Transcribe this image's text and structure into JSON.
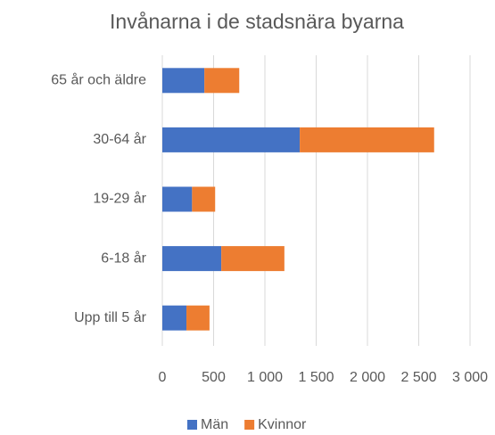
{
  "chart_data": {
    "type": "bar",
    "orientation": "horizontal",
    "stacked": true,
    "title": "Invånarna i de stadsnära byarna",
    "categories": [
      "65 år och äldre",
      "30-64 år",
      "19-29 år",
      "6-18 år",
      "Upp till 5 år"
    ],
    "series": [
      {
        "name": "Män",
        "color": "#4472c4",
        "values": [
          410,
          1340,
          290,
          575,
          235
        ]
      },
      {
        "name": "Kvinnor",
        "color": "#ed7d31",
        "values": [
          340,
          1310,
          225,
          615,
          225
        ]
      }
    ],
    "xlim": [
      0,
      3000
    ],
    "xticks": [
      0,
      500,
      {
        "value": 1000,
        "label": "1 000"
      },
      {
        "value": 1500,
        "label": "1 500"
      },
      {
        "value": 2000,
        "label": "2 000"
      },
      {
        "value": 2500,
        "label": "2 500"
      },
      {
        "value": 3000,
        "label": "3 000"
      }
    ],
    "grid": true,
    "legend": "bottom"
  }
}
